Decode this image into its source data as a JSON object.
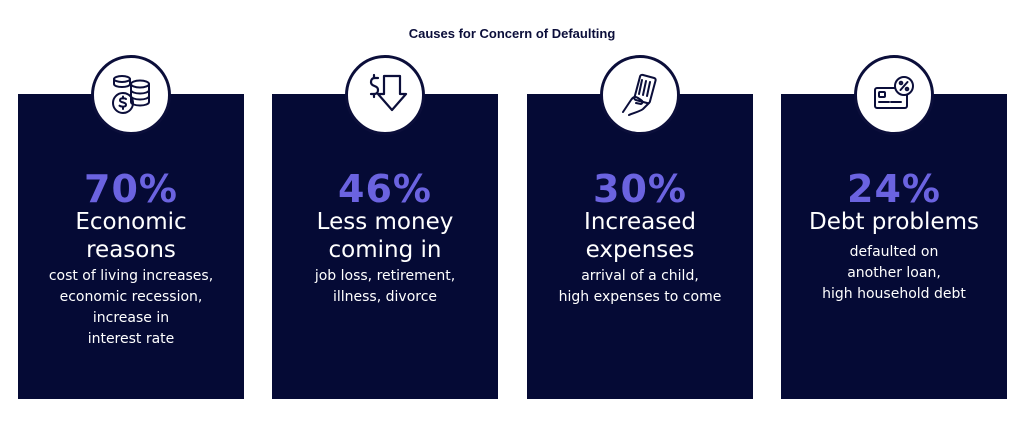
{
  "title": "Causes for Concern of Defaulting",
  "cards": [
    {
      "icon": "coins-dollar-icon",
      "percent": "70%",
      "heading": "Economic\nreasons",
      "description": "cost of living increases,\neconomic recession,\nincrease in\ninterest rate"
    },
    {
      "icon": "dollar-down-arrow-icon",
      "percent": "46%",
      "heading": "Less money\ncoming in",
      "description": "job loss, retirement,\nillness, divorce"
    },
    {
      "icon": "hand-card-icon",
      "percent": "30%",
      "heading": "Increased\nexpenses",
      "description": "arrival of a child,\nhigh expenses to come"
    },
    {
      "icon": "credit-card-percent-icon",
      "percent": "24%",
      "heading": "Debt problems",
      "description": "defaulted on\nanother loan,\nhigh household debt"
    }
  ],
  "colors": {
    "card_background": "#050a35",
    "accent": "#6b63e0",
    "title": "#0b0e3a"
  }
}
